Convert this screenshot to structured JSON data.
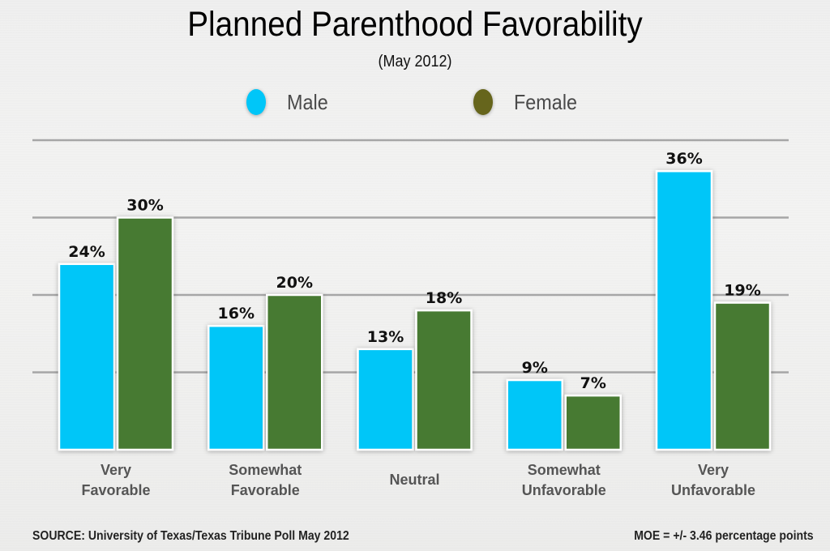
{
  "chart_data": {
    "type": "bar",
    "title": "Planned Parenthood Favorability",
    "subtitle": "(May 2012)",
    "xlabel": "",
    "ylabel": "",
    "ylim": [
      0,
      40
    ],
    "grid": true,
    "gridlines": [
      10,
      20,
      30,
      40
    ],
    "legend_position": "top-center",
    "categories": [
      [
        "Very",
        "Favorable"
      ],
      [
        "Somewhat",
        "Favorable"
      ],
      [
        "Neutral"
      ],
      [
        "Somewhat",
        "Unfavorable"
      ],
      [
        "Very",
        "Unfavorable"
      ]
    ],
    "series": [
      {
        "name": "Male",
        "color": "#00c6f8",
        "legend_color": "#00c6f8",
        "values": [
          24,
          16,
          13,
          9,
          36
        ]
      },
      {
        "name": "Female",
        "color": "#467a31",
        "legend_color": "#66651c",
        "values": [
          30,
          20,
          18,
          7,
          19
        ]
      }
    ],
    "value_suffix": "%"
  },
  "footer": {
    "source": "SOURCE: University of Texas/Texas Tribune Poll May 2012",
    "moe": "MOE = +/- 3.46 percentage points"
  }
}
